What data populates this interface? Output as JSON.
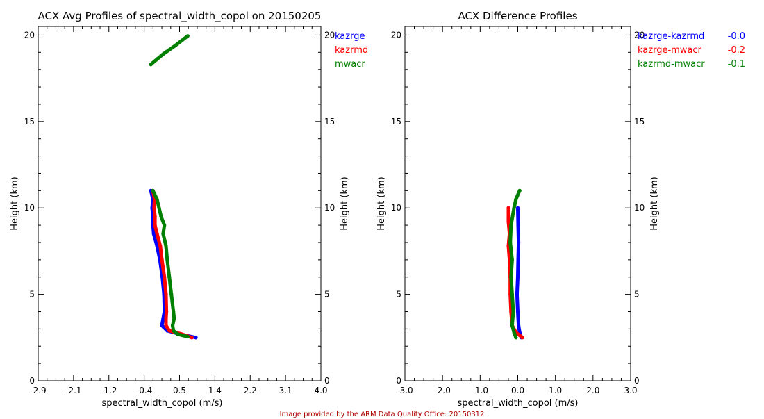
{
  "credit": "Image provided by the ARM Data Quality Office: 20150312",
  "chart_data": [
    {
      "type": "scatter",
      "title": "ACX Avg Profiles of spectral_width_copol on 20150205",
      "xlabel": "spectral_width_copol (m/s)",
      "ylabel": "Height (km)",
      "ylabel_right": "Height (km)",
      "xlim": [
        -2.9,
        4.0
      ],
      "ylim": [
        0,
        20.5
      ],
      "xticks": [
        "-2.9",
        "-2.1",
        "-1.2",
        "-0.4",
        "0.5",
        "1.4",
        "2.2",
        "3.1",
        "4.0"
      ],
      "yticks": [
        "0",
        "5",
        "10",
        "15",
        "20"
      ],
      "legend_position": "top-right-outside",
      "series": [
        {
          "name": "kazrge",
          "color": "#0000ff",
          "points": [
            [
              0.95,
              2.5
            ],
            [
              0.55,
              2.7
            ],
            [
              0.25,
              2.9
            ],
            [
              0.12,
              3.2
            ],
            [
              0.15,
              3.6
            ],
            [
              0.18,
              4.0
            ],
            [
              0.17,
              5.0
            ],
            [
              0.13,
              6.0
            ],
            [
              0.07,
              7.0
            ],
            [
              0.0,
              7.8
            ],
            [
              -0.08,
              8.5
            ],
            [
              -0.1,
              9.0
            ],
            [
              -0.1,
              9.5
            ],
            [
              -0.12,
              10.0
            ],
            [
              -0.1,
              10.5
            ],
            [
              -0.15,
              11.0
            ]
          ]
        },
        {
          "name": "kazrmd",
          "color": "#ff0000",
          "points": [
            [
              0.85,
              2.5
            ],
            [
              0.6,
              2.7
            ],
            [
              0.3,
              2.9
            ],
            [
              0.22,
              3.2
            ],
            [
              0.22,
              3.6
            ],
            [
              0.23,
              4.0
            ],
            [
              0.22,
              5.0
            ],
            [
              0.18,
              6.0
            ],
            [
              0.12,
              7.0
            ],
            [
              0.08,
              7.8
            ],
            [
              0.0,
              8.5
            ],
            [
              -0.05,
              9.0
            ],
            [
              -0.05,
              9.5
            ],
            [
              -0.07,
              10.0
            ],
            [
              -0.06,
              10.5
            ],
            [
              -0.1,
              11.0
            ]
          ]
        },
        {
          "name": "mwacr",
          "color": "#008000",
          "points": [
            [
              0.75,
              2.55
            ],
            [
              0.5,
              2.7
            ],
            [
              0.4,
              2.9
            ],
            [
              0.38,
              3.2
            ],
            [
              0.42,
              3.6
            ],
            [
              0.4,
              4.0
            ],
            [
              0.35,
              5.0
            ],
            [
              0.3,
              6.0
            ],
            [
              0.25,
              7.0
            ],
            [
              0.22,
              7.8
            ],
            [
              0.15,
              8.5
            ],
            [
              0.18,
              9.0
            ],
            [
              0.1,
              9.5
            ],
            [
              0.05,
              10.0
            ],
            [
              0.0,
              10.5
            ],
            [
              -0.1,
              11.0
            ],
            [
              -0.15,
              18.3
            ],
            [
              0.15,
              18.9
            ],
            [
              0.45,
              19.4
            ],
            [
              0.75,
              19.95
            ]
          ]
        }
      ]
    },
    {
      "type": "scatter",
      "title": "ACX Difference Profiles",
      "xlabel": "spectral_width_copol (m/s)",
      "ylabel": "Height (km)",
      "ylabel_right": "Height (km)",
      "xlim": [
        -3.0,
        3.0
      ],
      "ylim": [
        0,
        20.5
      ],
      "xticks": [
        "-3.0",
        "-2.0",
        "-1.0",
        "0.0",
        "1.0",
        "2.0",
        "3.0"
      ],
      "yticks": [
        "0",
        "5",
        "10",
        "15",
        "20"
      ],
      "legend_position": "top-right-outside",
      "series": [
        {
          "name": "kazrge-kazrmd",
          "value": "-0.0",
          "color": "#0000ff",
          "points": [
            [
              0.1,
              2.5
            ],
            [
              0.05,
              2.8
            ],
            [
              0.02,
              3.2
            ],
            [
              0.0,
              4.0
            ],
            [
              -0.02,
              5.0
            ],
            [
              0.0,
              6.0
            ],
            [
              0.01,
              7.0
            ],
            [
              0.02,
              8.0
            ],
            [
              0.01,
              9.0
            ],
            [
              0.0,
              10.0
            ]
          ]
        },
        {
          "name": "kazrge-mwacr",
          "value": "-0.2",
          "color": "#ff0000",
          "points": [
            [
              0.12,
              2.5
            ],
            [
              -0.05,
              2.8
            ],
            [
              -0.15,
              3.2
            ],
            [
              -0.18,
              4.0
            ],
            [
              -0.2,
              5.0
            ],
            [
              -0.2,
              6.0
            ],
            [
              -0.22,
              7.0
            ],
            [
              -0.25,
              7.8
            ],
            [
              -0.22,
              8.5
            ],
            [
              -0.25,
              9.2
            ],
            [
              -0.25,
              10.0
            ]
          ]
        },
        {
          "name": "kazrmd-mwacr",
          "value": "-0.1",
          "color": "#008000",
          "points": [
            [
              -0.05,
              2.5
            ],
            [
              -0.1,
              2.8
            ],
            [
              -0.15,
              3.2
            ],
            [
              -0.12,
              4.0
            ],
            [
              -0.15,
              5.0
            ],
            [
              -0.18,
              6.0
            ],
            [
              -0.15,
              7.0
            ],
            [
              -0.2,
              8.0
            ],
            [
              -0.18,
              9.0
            ],
            [
              -0.1,
              10.0
            ],
            [
              -0.05,
              10.5
            ],
            [
              0.05,
              11.0
            ]
          ]
        }
      ]
    }
  ]
}
